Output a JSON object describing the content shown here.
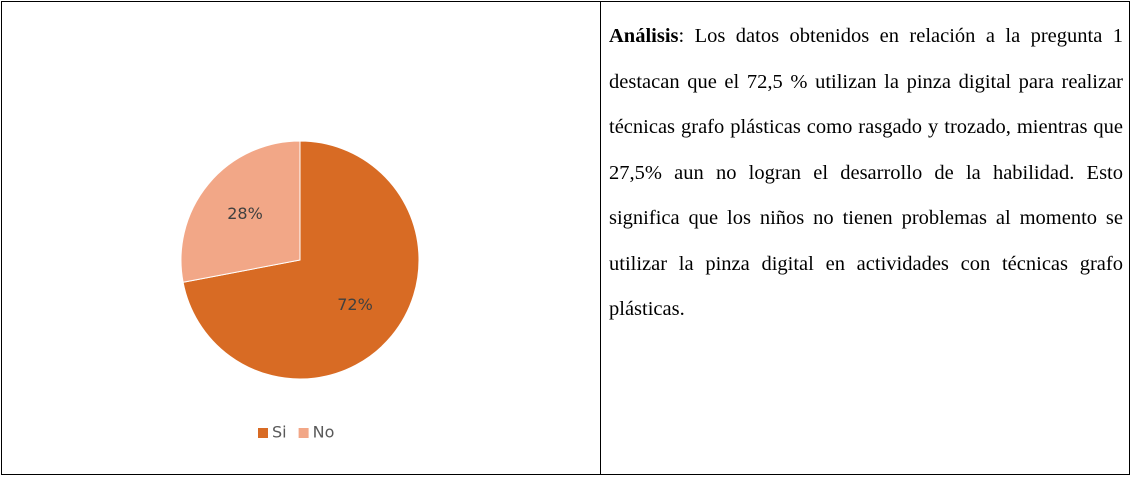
{
  "chart_data": {
    "type": "pie",
    "categories": [
      "Si",
      "No"
    ],
    "values": [
      72,
      28
    ],
    "value_labels": [
      "72%",
      "28%"
    ],
    "colors": [
      "#d86b24",
      "#f2a787"
    ],
    "legend": "bottom"
  },
  "analysis": {
    "label": "Análisis",
    "text": ": Los datos obtenidos en relación a la pregunta 1 destacan que el 72,5 % utilizan la pinza digital para realizar técnicas grafo plásticas como rasgado y trozado, mientras que 27,5% aun no logran el desarrollo de la habilidad. Esto significa que los niños no tienen problemas al momento se utilizar la pinza digital en actividades con técnicas grafo plásticas."
  }
}
